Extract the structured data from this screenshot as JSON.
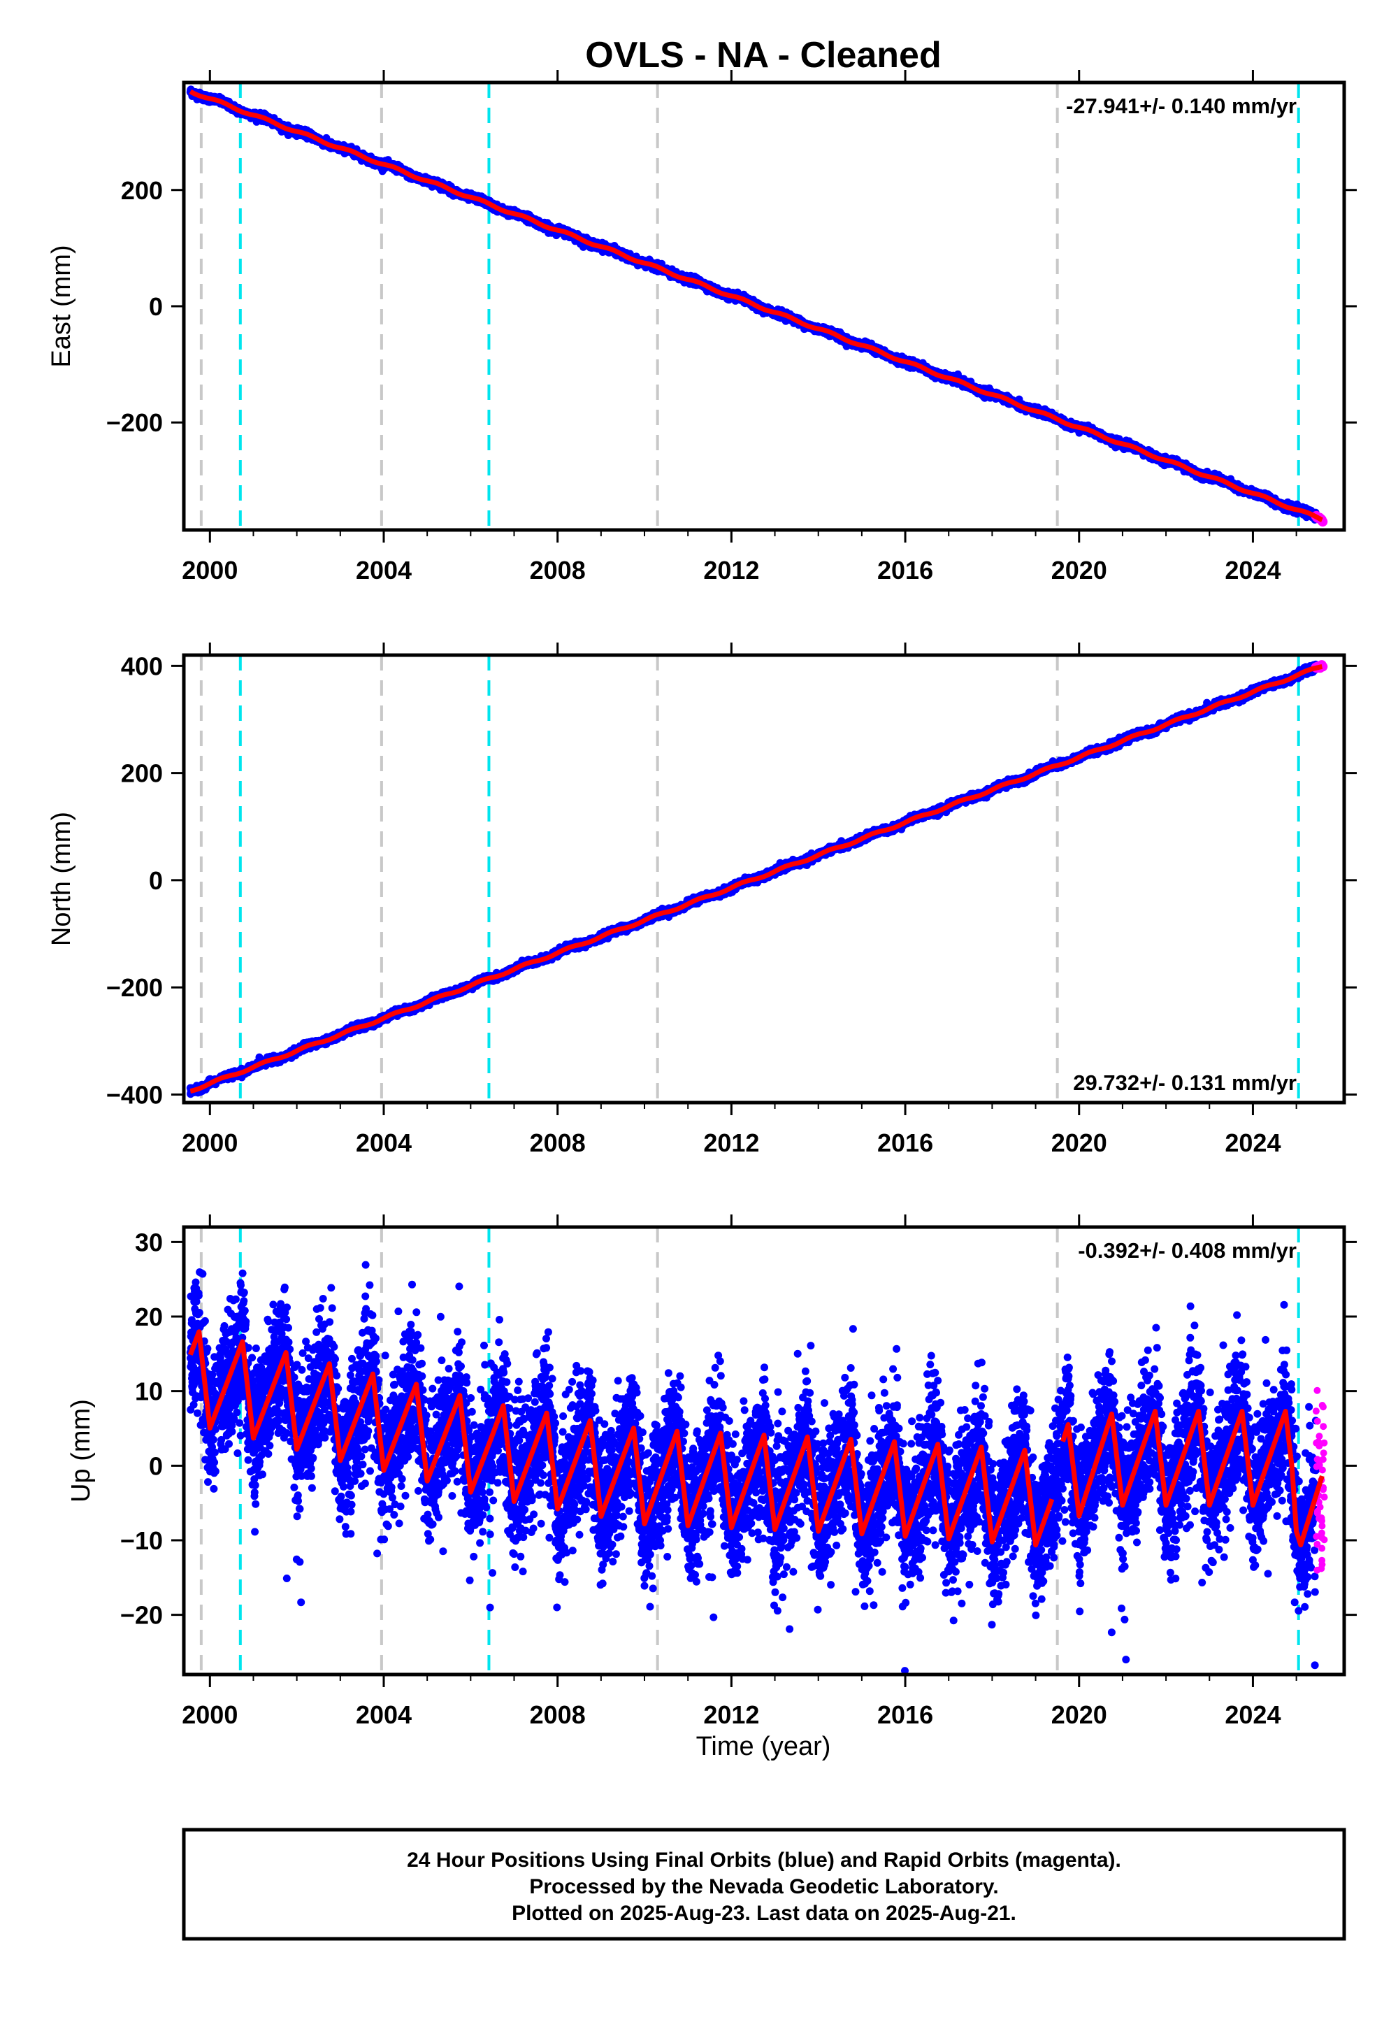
{
  "title": "OVLS  - NA - Cleaned",
  "x_axis_label": "Time (year)",
  "x_ticks": [
    "2000",
    "2004",
    "2008",
    "2012",
    "2016",
    "2020",
    "2024"
  ],
  "colors": {
    "final_orbits": "#0000ff",
    "rapid_orbits": "#ff00ff",
    "model": "#ff0000",
    "equipment_change": "#00e5ee",
    "other_event": "#c8c8c8"
  },
  "footer": {
    "line1": "24 Hour Positions Using Final Orbits (blue) and Rapid Orbits (magenta).",
    "line2": "Processed by the Nevada Geodetic Laboratory.",
    "line3": "Plotted on 2025-Aug-23. Last data on 2025-Aug-21."
  },
  "chart_data": [
    {
      "type": "scatter",
      "component": "east",
      "ylabel": "East (mm)",
      "rate_label": "-27.941+/- 0.140 mm/yr",
      "xlim": [
        1999.4,
        2026.1
      ],
      "ylim": [
        -385,
        385
      ],
      "yticks": [
        -200,
        0,
        200
      ],
      "ytick_labels": [
        "−200",
        "0",
        "200"
      ],
      "rate_mm_per_yr": -27.941,
      "start": {
        "x": 1999.55,
        "y": 370
      },
      "end": {
        "x": 2025.6,
        "y": -367
      },
      "seasonal_amplitude": 2,
      "noise": 3,
      "gray_lines": [
        1999.8,
        2003.95,
        2010.3,
        2019.5
      ],
      "cyan_lines": [
        2000.7,
        2006.42,
        2025.05
      ]
    },
    {
      "type": "scatter",
      "component": "north",
      "ylabel": "North (mm)",
      "rate_label": "29.732+/- 0.131 mm/yr",
      "xlim": [
        1999.4,
        2026.1
      ],
      "ylim": [
        -415,
        420
      ],
      "yticks": [
        -400,
        -200,
        0,
        200,
        400
      ],
      "ytick_labels": [
        "−400",
        "−200",
        "0",
        "200",
        "400"
      ],
      "rate_mm_per_yr": 29.732,
      "start": {
        "x": 1999.55,
        "y": -393
      },
      "end": {
        "x": 2025.6,
        "y": 400
      },
      "seasonal_amplitude": 2,
      "noise": 3,
      "gray_lines": [
        1999.8,
        2003.95,
        2010.3,
        2019.5
      ],
      "cyan_lines": [
        2000.7,
        2006.42,
        2025.05
      ]
    },
    {
      "type": "scatter",
      "component": "up",
      "ylabel": "Up (mm)",
      "rate_label": "-0.392+/- 0.408 mm/yr",
      "xlim": [
        1999.4,
        2026.1
      ],
      "ylim": [
        -28,
        32
      ],
      "yticks": [
        -20,
        -10,
        0,
        10,
        20,
        30
      ],
      "ytick_labels": [
        "−20",
        "−10",
        "0",
        "10",
        "20",
        "30"
      ],
      "rate_mm_per_yr": -0.392,
      "seasonal_amplitude": 7,
      "noise": 4.5,
      "model_trend": [
        {
          "x": 1999.5,
          "y": 12
        },
        {
          "x": 2001.0,
          "y": 10
        },
        {
          "x": 2003.0,
          "y": 7
        },
        {
          "x": 2004.5,
          "y": 5
        },
        {
          "x": 2006.5,
          "y": 2
        },
        {
          "x": 2010.0,
          "y": -1.5
        },
        {
          "x": 2014.0,
          "y": -2.5
        },
        {
          "x": 2017.0,
          "y": -3.5
        },
        {
          "x": 2019.4,
          "y": -4.5
        },
        {
          "x": 2019.6,
          "y": -1
        },
        {
          "x": 2021.0,
          "y": 1
        },
        {
          "x": 2024.9,
          "y": 1
        },
        {
          "x": 2025.1,
          "y": -6
        },
        {
          "x": 2025.6,
          "y": -5
        }
      ],
      "rapid_range": {
        "x_start": 2025.45,
        "x_end": 2025.65,
        "y_min": -14,
        "y_max": 10.5
      },
      "gray_lines": [
        1999.8,
        2003.95,
        2010.3,
        2019.5
      ],
      "cyan_lines": [
        2000.7,
        2006.42,
        2025.05
      ]
    }
  ]
}
